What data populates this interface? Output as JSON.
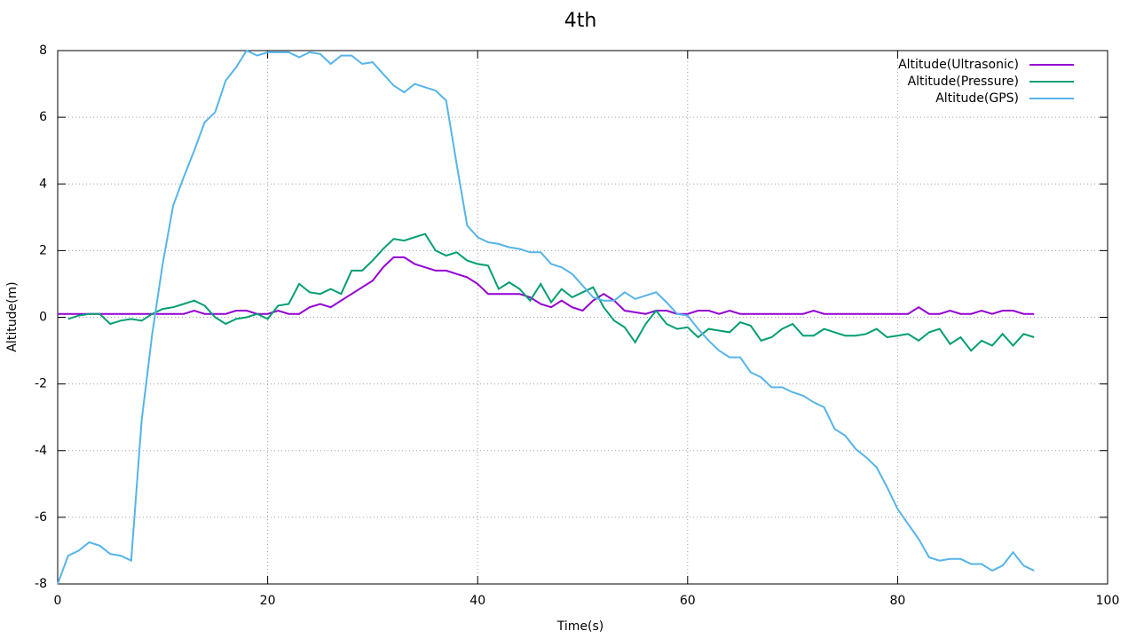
{
  "chart_data": {
    "type": "line",
    "title": "4th",
    "x_label": "Time(s)",
    "y_label": "Altitude(m)",
    "x": [
      0,
      1,
      2,
      3,
      4,
      5,
      6,
      7,
      8,
      9,
      10,
      11,
      12,
      13,
      14,
      15,
      16,
      17,
      18,
      19,
      20,
      21,
      22,
      23,
      24,
      25,
      26,
      27,
      28,
      29,
      30,
      31,
      32,
      33,
      34,
      35,
      36,
      37,
      38,
      39,
      40,
      41,
      42,
      43,
      44,
      45,
      46,
      47,
      48,
      49,
      50,
      51,
      52,
      53,
      54,
      55,
      56,
      57,
      58,
      59,
      60,
      61,
      62,
      63,
      64,
      65,
      66,
      67,
      68,
      69,
      70,
      71,
      72,
      73,
      74,
      75,
      76,
      77,
      78,
      79,
      80,
      81,
      82,
      83,
      84,
      85,
      86,
      87,
      88,
      89,
      90,
      91,
      92,
      93
    ],
    "series": [
      {
        "name": "Altitude(Ultrasonic)",
        "color": "#9400d3",
        "values": [
          0.1,
          0.1,
          0.1,
          0.1,
          0.1,
          0.1,
          0.1,
          0.1,
          0.1,
          0.1,
          0.1,
          0.1,
          0.1,
          0.2,
          0.1,
          0.1,
          0.1,
          0.2,
          0.2,
          0.1,
          0.1,
          0.2,
          0.1,
          0.1,
          0.3,
          0.4,
          0.3,
          0.5,
          0.7,
          0.9,
          1.1,
          1.5,
          1.8,
          1.8,
          1.6,
          1.5,
          1.4,
          1.4,
          1.3,
          1.2,
          1.0,
          0.7,
          0.7,
          0.7,
          0.7,
          0.6,
          0.4,
          0.3,
          0.5,
          0.3,
          0.2,
          0.5,
          0.7,
          0.5,
          0.2,
          0.15,
          0.1,
          0.2,
          0.2,
          0.1,
          0.1,
          0.2,
          0.2,
          0.1,
          0.2,
          0.1,
          0.1,
          0.1,
          0.1,
          0.1,
          0.1,
          0.1,
          0.2,
          0.1,
          0.1,
          0.1,
          0.1,
          0.1,
          0.1,
          0.1,
          0.1,
          0.1,
          0.3,
          0.1,
          0.1,
          0.2,
          0.1,
          0.1,
          0.2,
          0.1,
          0.2,
          0.2,
          0.1,
          0.1
        ]
      },
      {
        "name": "Altitude(Pressure)",
        "color": "#009e73",
        "values": [
          null,
          -0.05,
          0.05,
          0.1,
          0.1,
          -0.2,
          -0.1,
          -0.05,
          -0.1,
          0.1,
          0.25,
          0.3,
          0.4,
          0.5,
          0.35,
          0,
          -0.2,
          -0.05,
          0,
          0.1,
          -0.05,
          0.35,
          0.4,
          1.0,
          0.75,
          0.7,
          0.85,
          0.7,
          1.4,
          1.4,
          1.7,
          2.05,
          2.35,
          2.3,
          2.4,
          2.5,
          2.0,
          1.85,
          1.95,
          1.7,
          1.6,
          1.55,
          0.85,
          1.05,
          0.85,
          0.5,
          1.0,
          0.45,
          0.85,
          0.6,
          0.75,
          0.9,
          0.3,
          -0.1,
          -0.3,
          -0.75,
          -0.2,
          0.2,
          -0.2,
          -0.35,
          -0.3,
          -0.6,
          -0.35,
          -0.4,
          -0.45,
          -0.15,
          -0.25,
          -0.7,
          -0.6,
          -0.35,
          -0.2,
          -0.55,
          -0.55,
          -0.35,
          -0.45,
          -0.55,
          -0.55,
          -0.5,
          -0.35,
          -0.6,
          -0.55,
          -0.5,
          -0.7,
          -0.45,
          -0.35,
          -0.8,
          -0.6,
          -1.0,
          -0.7,
          -0.85,
          -0.5,
          -0.85,
          -0.5,
          -0.6
        ]
      },
      {
        "name": "Altitude(GPS)",
        "color": "#56b4e9",
        "values": [
          -8,
          -7.15,
          -7.0,
          -6.75,
          -6.85,
          -7.1,
          -7.15,
          -7.3,
          -3.1,
          -0.5,
          1.6,
          3.35,
          4.2,
          5.0,
          5.85,
          6.15,
          7.1,
          7.5,
          8.0,
          7.85,
          7.95,
          7.95,
          7.95,
          7.8,
          7.95,
          7.9,
          7.6,
          7.85,
          7.85,
          7.6,
          7.65,
          7.3,
          6.95,
          6.75,
          7.0,
          6.9,
          6.8,
          6.5,
          4.6,
          2.75,
          2.4,
          2.25,
          2.2,
          2.1,
          2.05,
          1.95,
          1.95,
          1.6,
          1.5,
          1.3,
          0.95,
          0.6,
          0.5,
          0.5,
          0.75,
          0.55,
          0.65,
          0.75,
          0.45,
          0.1,
          0.05,
          -0.35,
          -0.7,
          -1.0,
          -1.2,
          -1.2,
          -1.65,
          -1.8,
          -2.1,
          -2.1,
          -2.25,
          -2.35,
          -2.55,
          -2.7,
          -3.35,
          -3.55,
          -3.95,
          -4.2,
          -4.5,
          -5.1,
          -5.75,
          -6.2,
          -6.65,
          -7.2,
          -7.3,
          -7.25,
          -7.25,
          -7.4,
          -7.4,
          -7.6,
          -7.45,
          -7.05,
          -7.45,
          -7.6
        ]
      }
    ],
    "xlim": [
      0,
      100
    ],
    "xticks": [
      0,
      20,
      40,
      60,
      80,
      100
    ],
    "ylim": [
      -8,
      8
    ],
    "yticks": [
      -8,
      -6,
      -4,
      -2,
      0,
      2,
      4,
      6,
      8
    ],
    "grid": true,
    "legend": "top-right"
  }
}
